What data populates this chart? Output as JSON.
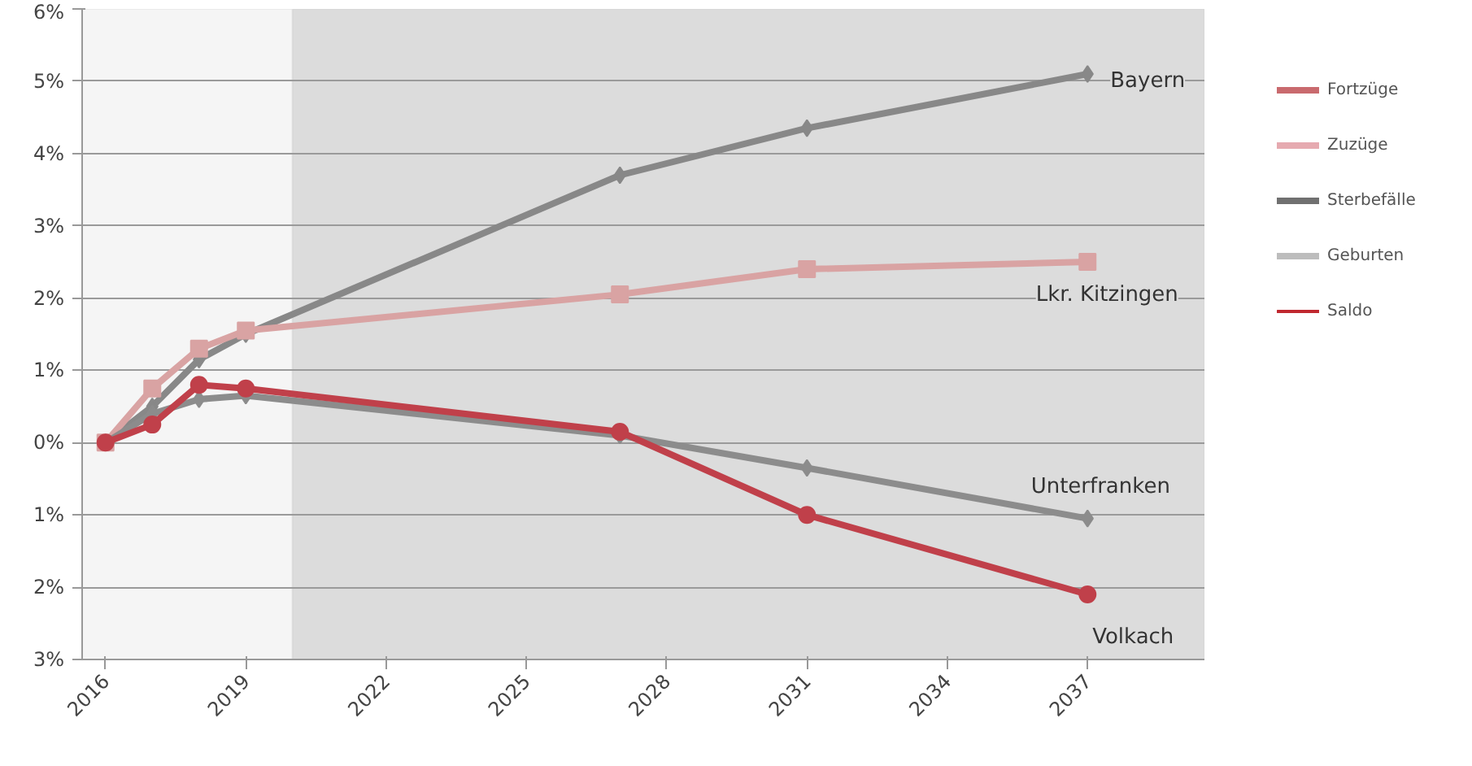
{
  "chart_data": {
    "type": "line",
    "x": [
      2016,
      2017,
      2018,
      2019,
      2027,
      2031,
      2037
    ],
    "series": [
      {
        "name": "Bayern",
        "color": "#888888",
        "marker": "diamond",
        "values": [
          0,
          0.5,
          1.15,
          1.5,
          3.7,
          4.35,
          5.1
        ]
      },
      {
        "name": "Lkr. Kitzingen",
        "color": "#d9a3a3",
        "marker": "square",
        "values": [
          0,
          0.75,
          1.3,
          1.55,
          2.05,
          2.4,
          2.5
        ]
      },
      {
        "name": "Unterfranken",
        "color": "#8c8c8c",
        "marker": "diamond",
        "values": [
          0,
          0.4,
          0.6,
          0.65,
          0.1,
          -0.35,
          -1.05
        ]
      },
      {
        "name": "Volkach",
        "color": "#c0404a",
        "marker": "circle",
        "values": [
          0,
          0.25,
          0.8,
          0.75,
          0.15,
          -1.0,
          -2.1
        ]
      },
      {
        "name": "Fortzüge",
        "color": "#c96a6e",
        "values": [
          null,
          null,
          null,
          null,
          null,
          null,
          null
        ]
      },
      {
        "name": "Zuzüge",
        "color": "#e6aab0",
        "values": [
          null,
          null,
          null,
          null,
          null,
          null,
          null
        ]
      },
      {
        "name": "Sterbefälle",
        "color": "#707070",
        "values": [
          null,
          null,
          null,
          null,
          null,
          null,
          null
        ]
      },
      {
        "name": "Geburten",
        "color": "#bdbdbd",
        "values": [
          null,
          null,
          null,
          null,
          null,
          null,
          null
        ]
      },
      {
        "name": "Saldo",
        "color": "#c0282f",
        "values": [
          null,
          null,
          null,
          null,
          null,
          null,
          null
        ]
      }
    ],
    "xlim": [
      2015.5,
      2039.5
    ],
    "xticks": [
      2016,
      2019,
      2022,
      2025,
      2028,
      2031,
      2034,
      2037
    ],
    "ylim": [
      -3,
      6
    ],
    "yticks": [
      {
        "value": -3,
        "label": "3%"
      },
      {
        "value": -2,
        "label": "2%"
      },
      {
        "value": -1,
        "label": "1%"
      },
      {
        "value": 0,
        "label": "0%"
      },
      {
        "value": 1,
        "label": "1%"
      },
      {
        "value": 2,
        "label": "2%"
      },
      {
        "value": 3,
        "label": "3%"
      },
      {
        "value": 4,
        "label": "4%"
      },
      {
        "value": 5,
        "label": "5%"
      },
      {
        "value": 6,
        "label": "6%"
      }
    ],
    "bands": [
      {
        "axis": "x",
        "from": 2015.5,
        "to": 2020,
        "color": "#f5f5f5"
      },
      {
        "axis": "x",
        "from": 2020,
        "to": 2039.5,
        "color": "#dcdcdc"
      }
    ],
    "grid": "y",
    "legend": "right"
  }
}
